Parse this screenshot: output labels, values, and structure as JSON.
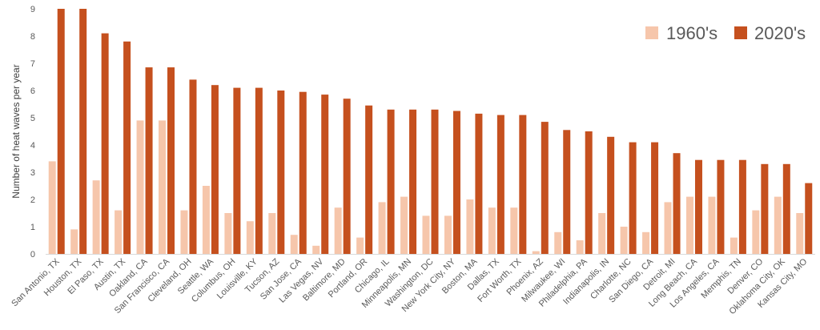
{
  "chart_data": {
    "type": "bar",
    "title": "",
    "xlabel": "",
    "ylabel": "Number of heat waves per year",
    "ylim": [
      0,
      9
    ],
    "yticks": [
      0,
      1,
      2,
      3,
      4,
      5,
      6,
      7,
      8,
      9
    ],
    "grid": false,
    "legend_position": "top-right",
    "categories": [
      "San Antonio, TX",
      "Houston, TX",
      "El Paso, TX",
      "Austin, TX",
      "Oakland, CA",
      "San Francisco, CA",
      "Cleveland, OH",
      "Seattle, WA",
      "Columbus, OH",
      "Louisville, KY",
      "Tucson, AZ",
      "San Jose, CA",
      "Las Vegas, NV",
      "Baltimore, MD",
      "Portland, OR",
      "Chicago, IL",
      "Minneapolis, MN",
      "Washington, DC",
      "New York City, NY",
      "Boston, MA",
      "Dallas, TX",
      "Fort Worth, TX",
      "Phoenix, AZ",
      "Milwaukee, WI",
      "Philadelphia, PA",
      "Indianapolis, IN",
      "Charlotte, NC",
      "San Diego, CA",
      "Detroit, MI",
      "Long Beach, CA",
      "Los Angeles, CA",
      "Memphis, TN",
      "Denver, CO",
      "Oklahoma City, OK",
      "Kansas City, MO"
    ],
    "series": [
      {
        "name": "1960's",
        "color": "#F6C6AB",
        "values": [
          3.4,
          0.9,
          2.7,
          1.6,
          4.9,
          4.9,
          1.6,
          2.5,
          1.5,
          1.2,
          1.5,
          0.7,
          0.3,
          1.7,
          0.6,
          1.9,
          2.1,
          1.4,
          1.4,
          2.0,
          1.7,
          1.7,
          0.1,
          0.8,
          0.5,
          1.5,
          1.0,
          0.8,
          1.9,
          2.1,
          2.1,
          0.6,
          1.6,
          2.1,
          1.5
        ]
      },
      {
        "name": "2020's",
        "color": "#C5501E",
        "values": [
          9.0,
          9.0,
          8.1,
          7.8,
          6.85,
          6.85,
          6.4,
          6.2,
          6.1,
          6.1,
          6.0,
          5.95,
          5.85,
          5.7,
          5.45,
          5.3,
          5.3,
          5.3,
          5.25,
          5.15,
          5.1,
          5.1,
          4.85,
          4.55,
          4.5,
          4.3,
          4.1,
          4.1,
          3.7,
          3.45,
          3.45,
          3.45,
          3.3,
          3.3,
          2.6
        ]
      }
    ]
  }
}
